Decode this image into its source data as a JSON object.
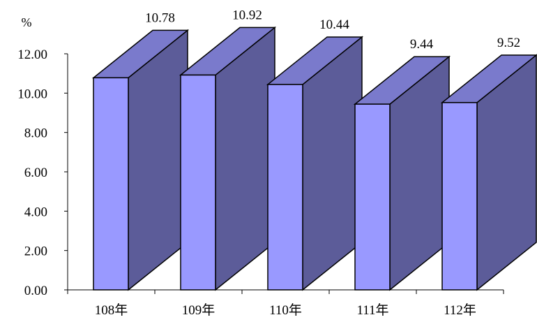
{
  "chart_data": {
    "type": "bar",
    "unit_label": "%",
    "categories": [
      "108年",
      "109年",
      "110年",
      "111年",
      "112年"
    ],
    "values": [
      10.78,
      10.92,
      10.44,
      9.44,
      9.52
    ],
    "value_labels": [
      "10.78",
      "10.92",
      "10.44",
      "9.44",
      "9.52"
    ],
    "y_ticks": [
      "0.00",
      "2.00",
      "4.00",
      "6.00",
      "8.00",
      "10.00",
      "12.00"
    ],
    "ylim": [
      0,
      12
    ],
    "grid": false,
    "legend": "none",
    "three_d": true,
    "colors": {
      "front": "#9999ff",
      "side": "#5c5c99",
      "top": "#7a7acc",
      "outline": "#000000"
    }
  }
}
